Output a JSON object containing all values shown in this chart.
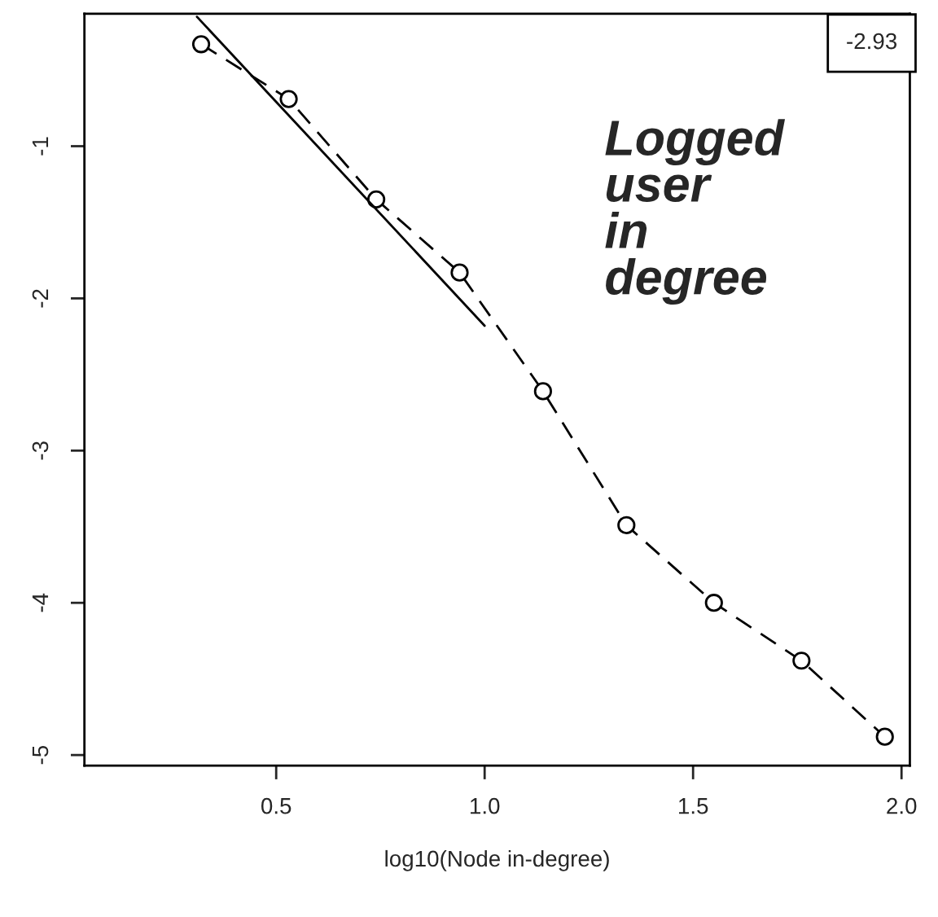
{
  "chart_data": {
    "type": "line",
    "xlabel": "log10(Node in-degree)",
    "x": [
      0.32,
      0.53,
      0.74,
      0.94,
      1.14,
      1.34,
      1.55,
      1.76,
      1.96
    ],
    "series": [
      {
        "color": "#000000",
        "marker": "circle",
        "line_style": "dashed",
        "values": [
          -0.33,
          -0.69,
          -1.35,
          -1.83,
          -2.61,
          -3.49,
          -4.0,
          -4.38,
          -4.88
        ]
      },
      {
        "color": "#000000",
        "marker": "none",
        "line_style": "solid",
        "x": [
          0.31,
          1.0
        ],
        "values": [
          -0.15,
          -2.18
        ]
      }
    ],
    "xlim": [
      0.04,
      2.02
    ],
    "ylim": [
      -5.07,
      -0.13
    ],
    "xticks": [
      0.5,
      {
        "value": 1,
        "label": "1.0"
      },
      1.5,
      {
        "value": 2,
        "label": "2.0"
      }
    ],
    "yticks": [
      -5,
      -4,
      -3,
      -2,
      -1
    ],
    "grid": false,
    "legend": false,
    "annotations": [
      "-2.93",
      "Logged\nuser\nin\ndegree"
    ]
  }
}
